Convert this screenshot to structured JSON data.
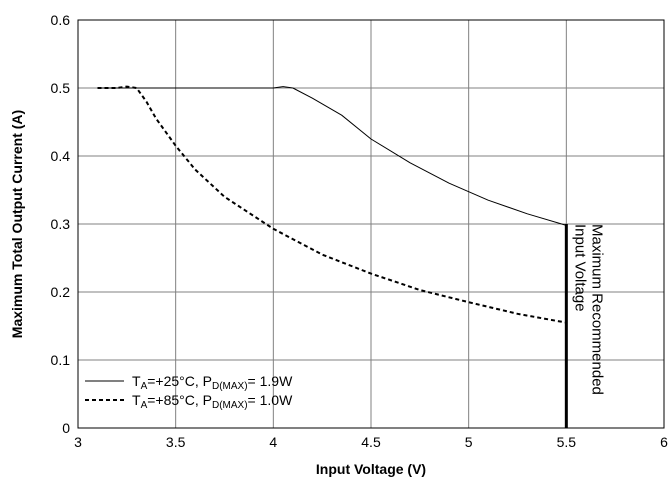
{
  "chart_data": {
    "type": "line",
    "xlabel": "Input Voltage (V)",
    "ylabel": "Maximum Total Output Current (A)",
    "xlim": [
      3,
      6
    ],
    "ylim": [
      0,
      0.6
    ],
    "x_ticks": [
      "3",
      "3.5",
      "4",
      "4.5",
      "5",
      "5.5",
      "6"
    ],
    "y_ticks": [
      "0",
      "0.1",
      "0.2",
      "0.3",
      "0.4",
      "0.5",
      "0.6"
    ],
    "grid": true,
    "legend_position": "bottom-left",
    "series": [
      {
        "name": "TA=+25°C, PD(MAX)= 1.9W",
        "legend": {
          "t_sub": "A",
          "t_rest": "=+25°C, P",
          "p_sub": "D(MAX)",
          "p_rest": "= 1.9W"
        },
        "style": "solid",
        "x": [
          3.1,
          3.3,
          3.5,
          3.8,
          4.0,
          4.05,
          4.1,
          4.2,
          4.35,
          4.5,
          4.7,
          4.9,
          5.1,
          5.3,
          5.5
        ],
        "y": [
          0.5,
          0.5,
          0.5,
          0.5,
          0.5,
          0.502,
          0.5,
          0.485,
          0.46,
          0.425,
          0.39,
          0.36,
          0.335,
          0.315,
          0.298
        ]
      },
      {
        "name": "TA=+85°C, PD(MAX)= 1.0W",
        "legend": {
          "t_sub": "A",
          "t_rest": "=+85°C, P",
          "p_sub": "D(MAX)",
          "p_rest": "= 1.0W"
        },
        "style": "dashed",
        "x": [
          3.1,
          3.2,
          3.25,
          3.3,
          3.35,
          3.4,
          3.5,
          3.6,
          3.75,
          4.0,
          4.25,
          4.5,
          4.75,
          5.0,
          5.25,
          5.5
        ],
        "y": [
          0.5,
          0.5,
          0.502,
          0.5,
          0.48,
          0.455,
          0.415,
          0.38,
          0.34,
          0.293,
          0.255,
          0.227,
          0.203,
          0.185,
          0.168,
          0.155
        ]
      }
    ],
    "annotation": {
      "line1": "Maximum Recommended",
      "line2": "Input Voltage",
      "x": 5.5,
      "y_top": 0.3
    },
    "colors": {
      "lines": "#000000",
      "grid": "#808080"
    }
  }
}
